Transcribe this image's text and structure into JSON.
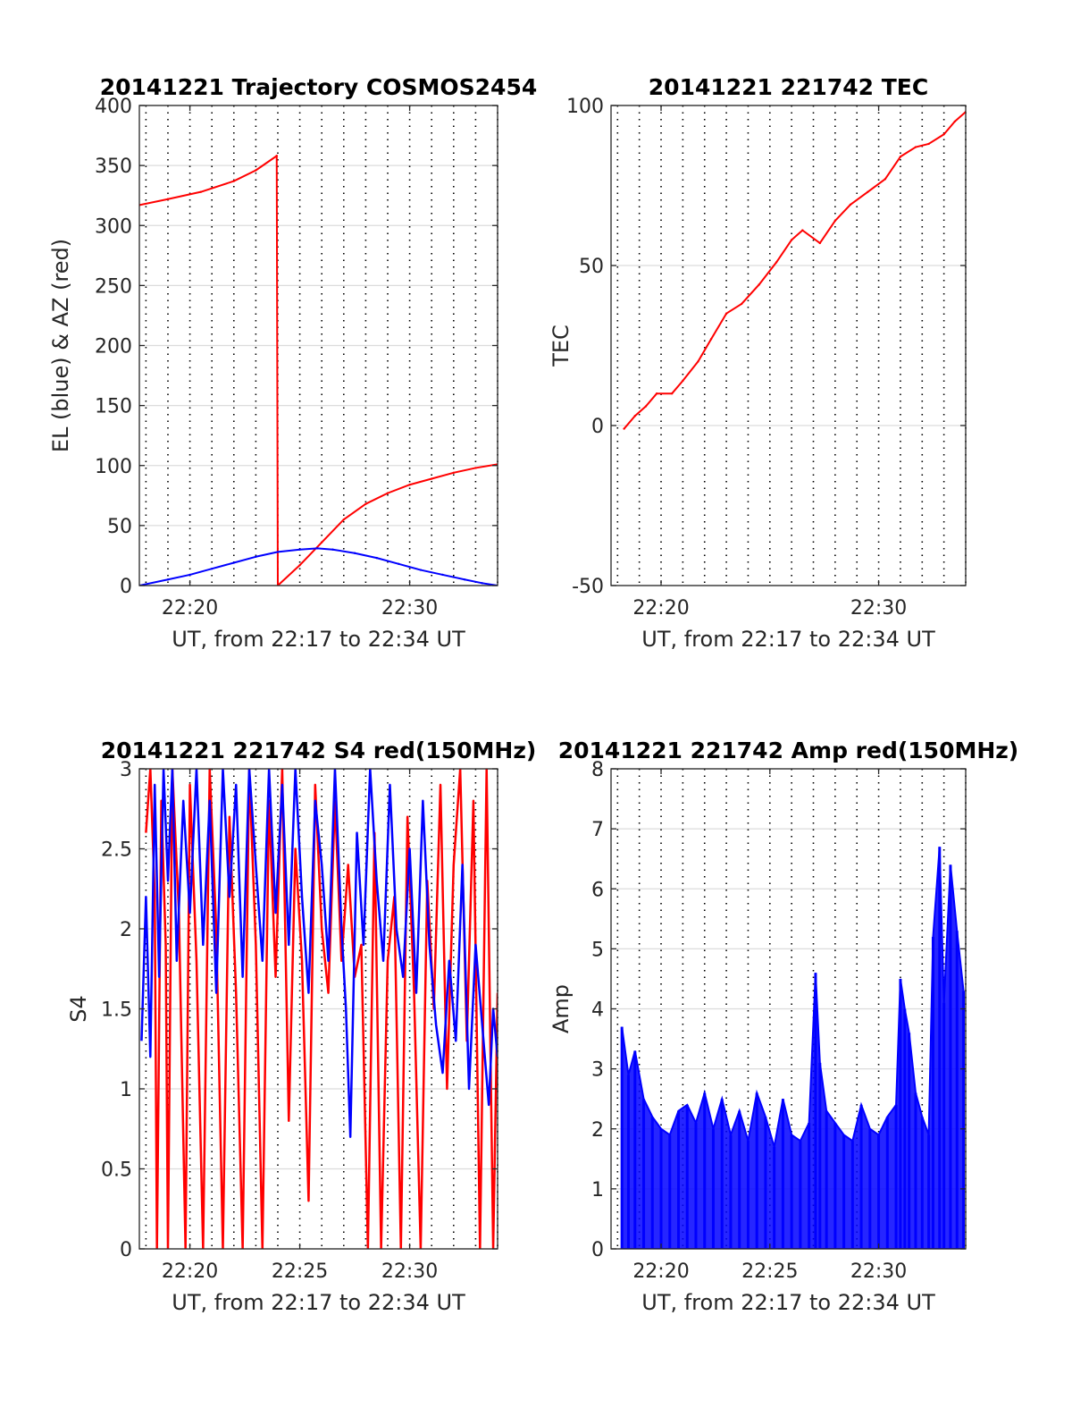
{
  "chart_data": [
    {
      "id": "trajectory",
      "type": "line",
      "title": "20141221 Trajectory COSMOS2454",
      "xlabel": "UT, from 22:17 to 22:34 UT",
      "ylabel": "EL (blue) & AZ (red)",
      "xlim": [
        17.7,
        34.0
      ],
      "ylim": [
        0,
        400
      ],
      "yticks": [
        0,
        50,
        100,
        150,
        200,
        250,
        300,
        350,
        400
      ],
      "xticks": [
        {
          "v": 20,
          "label": "22:20"
        },
        {
          "v": 30,
          "label": "22:30"
        }
      ],
      "grid": true,
      "series": [
        {
          "color": "#ff0000",
          "x": [
            17.7,
            19,
            20.5,
            22,
            23,
            23.95,
            23.95,
            24.0,
            25,
            26,
            27,
            28,
            29,
            30,
            31,
            32,
            33,
            34
          ],
          "y": [
            317,
            322,
            328,
            337,
            346,
            358,
            358,
            0,
            17,
            36,
            55,
            68,
            77,
            84,
            89,
            94,
            98,
            101
          ]
        },
        {
          "color": "#0000ff",
          "x": [
            17.7,
            19,
            20,
            21,
            22,
            23,
            24,
            25,
            25.8,
            26.5,
            27.5,
            28.5,
            29.5,
            30.5,
            31.5,
            32.5,
            33.3,
            34
          ],
          "y": [
            0,
            5,
            9,
            14,
            19,
            24,
            28,
            30,
            31,
            30,
            27,
            23,
            18,
            13,
            9,
            5,
            2,
            0
          ]
        }
      ]
    },
    {
      "id": "tec",
      "type": "line",
      "title": "20141221 221742 TEC",
      "xlabel": "UT, from 22:17 to 22:34 UT",
      "ylabel": "TEC",
      "xlim": [
        17.7,
        34.0
      ],
      "ylim": [
        -50,
        100
      ],
      "yticks": [
        -50,
        0,
        50,
        100
      ],
      "xticks": [
        {
          "v": 20,
          "label": "22:20"
        },
        {
          "v": 30,
          "label": "22:30"
        }
      ],
      "grid": true,
      "series": [
        {
          "color": "#ff0000",
          "x": [
            18.3,
            18.8,
            19.3,
            19.8,
            20.5,
            21.0,
            21.7,
            22.3,
            23.0,
            23.7,
            24.5,
            25.3,
            26.0,
            26.5,
            27.3,
            28.0,
            28.7,
            29.5,
            30.3,
            31.0,
            31.7,
            32.3,
            33.0,
            33.5,
            34.0
          ],
          "y": [
            -1,
            3,
            6,
            10,
            10,
            14,
            20,
            27,
            35,
            38,
            44,
            51,
            58,
            61,
            57,
            64,
            69,
            73,
            77,
            84,
            87,
            88,
            91,
            95,
            98
          ]
        }
      ]
    },
    {
      "id": "s4",
      "type": "line",
      "title": "20141221 221742 S4 red(150MHz)",
      "xlabel": "UT, from 22:17 to 22:34 UT",
      "ylabel": "S4",
      "xlim": [
        17.7,
        34.0
      ],
      "ylim": [
        0,
        3
      ],
      "yticks": [
        0,
        0.5,
        1,
        1.5,
        2,
        2.5,
        3
      ],
      "ytick_labels": [
        "0",
        "0.5",
        "1",
        "1.5",
        "2",
        "2.5",
        "3"
      ],
      "xticks": [
        {
          "v": 20,
          "label": "22:20"
        },
        {
          "v": 25,
          "label": "22:25"
        },
        {
          "v": 30,
          "label": "22:30"
        }
      ],
      "grid": true,
      "series": [
        {
          "color": "#ff0000",
          "x": [
            18.0,
            18.2,
            18.4,
            18.5,
            18.7,
            18.9,
            19.0,
            19.2,
            19.5,
            19.8,
            20.0,
            20.3,
            20.6,
            20.9,
            21.2,
            21.5,
            21.8,
            22.1,
            22.4,
            22.7,
            23.0,
            23.3,
            23.6,
            23.9,
            24.2,
            24.5,
            24.8,
            25.1,
            25.4,
            25.7,
            26.0,
            26.3,
            26.6,
            26.9,
            27.2,
            27.5,
            27.8,
            28.1,
            28.4,
            28.7,
            29.0,
            29.3,
            29.6,
            29.9,
            30.2,
            30.5,
            30.8,
            31.1,
            31.4,
            31.7,
            32.0,
            32.3,
            32.6,
            32.9,
            33.2,
            33.5,
            33.8,
            34.0
          ],
          "y": [
            2.6,
            3.0,
            2.2,
            0.0,
            2.8,
            1.9,
            0.0,
            3.0,
            2.1,
            0.0,
            2.9,
            1.8,
            0.0,
            3.0,
            2.0,
            0.0,
            2.7,
            1.6,
            0.0,
            3.0,
            1.9,
            0.0,
            2.8,
            1.7,
            3.0,
            0.8,
            2.5,
            1.8,
            0.3,
            2.9,
            2.0,
            1.6,
            2.8,
            1.8,
            2.4,
            1.7,
            1.9,
            0.0,
            2.6,
            0.0,
            1.8,
            2.2,
            0.0,
            2.7,
            1.6,
            0.0,
            2.3,
            1.5,
            2.9,
            1.0,
            2.4,
            3.0,
            1.3,
            2.8,
            0.0,
            3.0,
            0.0,
            1.6
          ]
        },
        {
          "color": "#0000ff",
          "x": [
            17.8,
            18.0,
            18.2,
            18.4,
            18.6,
            18.8,
            19.0,
            19.2,
            19.4,
            19.7,
            20.0,
            20.3,
            20.6,
            20.9,
            21.2,
            21.5,
            21.8,
            22.1,
            22.4,
            22.7,
            23.0,
            23.3,
            23.6,
            23.9,
            24.2,
            24.5,
            24.8,
            25.1,
            25.4,
            25.7,
            26.0,
            26.3,
            26.6,
            26.9,
            27.1,
            27.3,
            27.6,
            27.9,
            28.2,
            28.5,
            28.8,
            29.1,
            29.4,
            29.7,
            30.0,
            30.3,
            30.6,
            30.9,
            31.2,
            31.5,
            31.8,
            32.1,
            32.4,
            32.7,
            33.0,
            33.3,
            33.6,
            33.8,
            34.0
          ],
          "y": [
            1.3,
            2.2,
            1.2,
            2.9,
            1.7,
            3.0,
            2.3,
            3.0,
            1.8,
            2.8,
            2.1,
            3.0,
            1.9,
            2.8,
            1.6,
            3.0,
            2.2,
            2.9,
            1.7,
            3.0,
            2.4,
            1.8,
            3.0,
            2.1,
            2.9,
            1.9,
            3.0,
            2.2,
            1.6,
            2.8,
            2.4,
            1.8,
            3.0,
            2.0,
            1.5,
            0.7,
            2.6,
            1.9,
            3.0,
            2.3,
            1.8,
            2.9,
            2.0,
            1.7,
            2.5,
            1.6,
            2.8,
            1.9,
            1.4,
            1.1,
            1.8,
            1.3,
            2.4,
            1.0,
            1.9,
            1.4,
            0.9,
            1.5,
            1.2
          ]
        }
      ]
    },
    {
      "id": "amp",
      "type": "bar",
      "title": "20141221 221742 Amp red(150MHz)",
      "xlabel": "UT, from 22:17 to 22:34 UT",
      "ylabel": "Amp",
      "xlim": [
        17.7,
        34.0
      ],
      "ylim": [
        0,
        8
      ],
      "yticks": [
        0,
        1,
        2,
        3,
        4,
        5,
        6,
        7,
        8
      ],
      "xticks": [
        {
          "v": 20,
          "label": "22:20"
        },
        {
          "v": 25,
          "label": "22:25"
        },
        {
          "v": 30,
          "label": "22:30"
        }
      ],
      "grid": true,
      "series": [
        {
          "color": "#0000ff",
          "x": [
            18.2,
            18.5,
            18.8,
            19.2,
            19.6,
            20.0,
            20.4,
            20.8,
            21.2,
            21.6,
            22.0,
            22.4,
            22.8,
            23.2,
            23.6,
            24.0,
            24.4,
            24.8,
            25.2,
            25.6,
            26.0,
            26.4,
            26.8,
            27.1,
            27.3,
            27.6,
            28.0,
            28.4,
            28.8,
            29.2,
            29.6,
            30.0,
            30.4,
            30.8,
            31.0,
            31.2,
            31.4,
            31.7,
            32.0,
            32.3,
            32.5,
            32.8,
            33.0,
            33.3,
            33.6,
            33.9
          ],
          "y": [
            3.7,
            2.9,
            3.3,
            2.5,
            2.2,
            2.0,
            1.9,
            2.3,
            2.4,
            2.1,
            2.6,
            2.0,
            2.5,
            1.9,
            2.3,
            1.8,
            2.6,
            2.2,
            1.7,
            2.5,
            1.9,
            1.8,
            2.1,
            4.6,
            3.1,
            2.3,
            2.1,
            1.9,
            1.8,
            2.4,
            2.0,
            1.9,
            2.2,
            2.4,
            4.5,
            4.0,
            3.6,
            2.6,
            2.2,
            1.9,
            5.2,
            6.7,
            4.1,
            6.4,
            5.3,
            4.3
          ]
        }
      ]
    }
  ]
}
